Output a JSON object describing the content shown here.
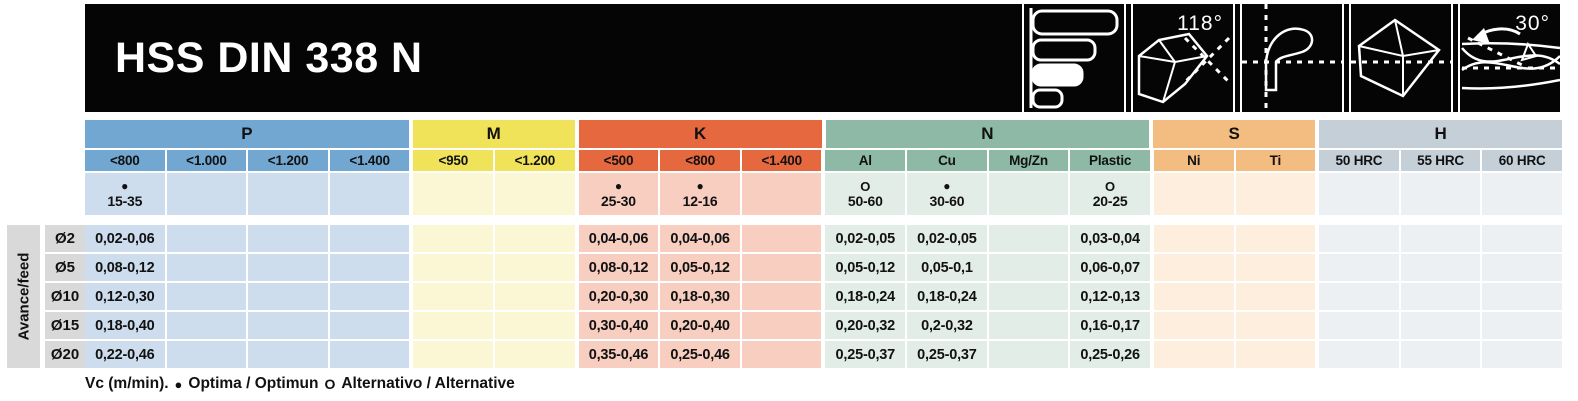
{
  "banner": {
    "title": "HSS DIN 338 N",
    "icons": [
      {
        "name": "diameter-range-chart-icon",
        "label": ""
      },
      {
        "name": "point-angle-icon",
        "label": "118°"
      },
      {
        "name": "flute-profile-icon",
        "label": ""
      },
      {
        "name": "drill-point-icon",
        "label": ""
      },
      {
        "name": "helix-angle-icon",
        "label": "30°"
      }
    ]
  },
  "row_axis_label": "Avance/feed",
  "groups": [
    {
      "id": "P",
      "label": "P",
      "color": "#72a7d2",
      "light": "#cdddee",
      "columns": [
        "<800",
        "<1.000",
        "<1.200",
        "<1.400"
      ]
    },
    {
      "id": "M",
      "label": "M",
      "color": "#f0e35a",
      "light": "#fbf6d4",
      "columns": [
        "<950",
        "<1.200"
      ]
    },
    {
      "id": "K",
      "label": "K",
      "color": "#e5683f",
      "light": "#f7cec0",
      "columns": [
        "<500",
        "<800",
        "<1.400"
      ]
    },
    {
      "id": "N",
      "label": "N",
      "color": "#8db9a6",
      "light": "#e3ede7",
      "columns": [
        "Al",
        "Cu",
        "Mg/Zn",
        "Plastic"
      ]
    },
    {
      "id": "S",
      "label": "S",
      "color": "#f3bd82",
      "light": "#fdeedd",
      "columns": [
        "Ni",
        "Ti"
      ]
    },
    {
      "id": "H",
      "label": "H",
      "color": "#c5cfd8",
      "light": "#ecf0f3",
      "columns": [
        "50 HRC",
        "55 HRC",
        "60 HRC"
      ]
    }
  ],
  "vc_row": [
    {
      "symbol": "●",
      "value": "15-35"
    },
    null,
    null,
    null,
    null,
    null,
    {
      "symbol": "●",
      "value": "25-30"
    },
    {
      "symbol": "●",
      "value": "12-16"
    },
    null,
    {
      "symbol": "O",
      "value": "50-60"
    },
    {
      "symbol": "●",
      "value": "30-60"
    },
    null,
    {
      "symbol": "O",
      "value": "20-25"
    },
    null,
    null,
    null,
    null,
    null
  ],
  "feed_rows": [
    {
      "diameter": "Ø2",
      "values": [
        "0,02-0,06",
        "",
        "",
        "",
        "",
        "",
        "0,04-0,06",
        "0,04-0,06",
        "",
        "0,02-0,05",
        "0,02-0,05",
        "",
        "0,03-0,04",
        "",
        "",
        "",
        "",
        ""
      ]
    },
    {
      "diameter": "Ø5",
      "values": [
        "0,08-0,12",
        "",
        "",
        "",
        "",
        "",
        "0,08-0,12",
        "0,05-0,12",
        "",
        "0,05-0,12",
        "0,05-0,1",
        "",
        "0,06-0,07",
        "",
        "",
        "",
        "",
        ""
      ]
    },
    {
      "diameter": "Ø10",
      "values": [
        "0,12-0,30",
        "",
        "",
        "",
        "",
        "",
        "0,20-0,30",
        "0,18-0,30",
        "",
        "0,18-0,24",
        "0,18-0,24",
        "",
        "0,12-0,13",
        "",
        "",
        "",
        "",
        ""
      ]
    },
    {
      "diameter": "Ø15",
      "values": [
        "0,18-0,40",
        "",
        "",
        "",
        "",
        "",
        "0,30-0,40",
        "0,20-0,40",
        "",
        "0,20-0,32",
        "0,2-0,32",
        "",
        "0,16-0,17",
        "",
        "",
        "",
        "",
        ""
      ]
    },
    {
      "diameter": "Ø20",
      "values": [
        "0,22-0,46",
        "",
        "",
        "",
        "",
        "",
        "0,35-0,46",
        "0,25-0,46",
        "",
        "0,25-0,37",
        "0,25-0,37",
        "",
        "0,25-0,26",
        "",
        "",
        "",
        "",
        ""
      ]
    }
  ],
  "legend": {
    "vc_label": "Vc (m/min).",
    "optima_symbol": "●",
    "optima_label": "Optima / Optimun",
    "alternative_symbol": "O",
    "alternative_label": "Alternativo / Alternative"
  }
}
